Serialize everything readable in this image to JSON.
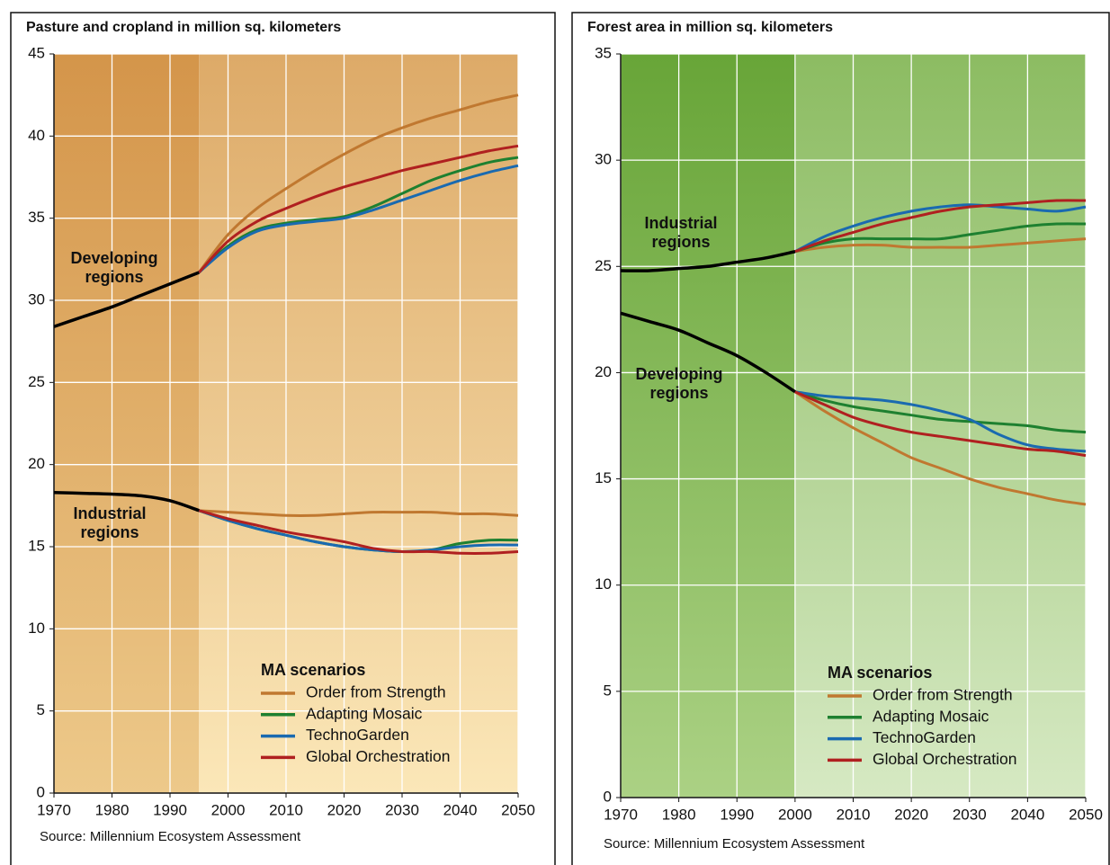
{
  "chart_data": [
    {
      "type": "line",
      "title": "Pasture and cropland in million sq. kilometers",
      "source": "Source: Millennium Ecosystem Assessment",
      "xlim": [
        1970,
        2050
      ],
      "xticks": [
        1970,
        1980,
        1990,
        2000,
        2010,
        2020,
        2030,
        2040,
        2050
      ],
      "ylim": [
        0,
        45
      ],
      "yticks": [
        0,
        5,
        10,
        15,
        20,
        25,
        30,
        35,
        40,
        45
      ],
      "grid": true,
      "legend_title": "MA scenarios",
      "history_color": "#000000",
      "scenarios": [
        {
          "name": "Order from Strength",
          "color": "#c07830"
        },
        {
          "name": "Adapting Mosaic",
          "color": "#1e8030"
        },
        {
          "name": "TechnoGarden",
          "color": "#1a6ab0"
        },
        {
          "name": "Global Orchestration",
          "color": "#b02020"
        }
      ],
      "regions": [
        {
          "label": [
            "Developing",
            "regions"
          ],
          "history": {
            "x": [
              1970,
              1975,
              1980,
              1985,
              1990,
              1995
            ],
            "values": [
              28.4,
              29.0,
              29.6,
              30.3,
              31.0,
              31.7
            ]
          },
          "scenario_x": [
            1995,
            2000,
            2005,
            2010,
            2015,
            2020,
            2025,
            2030,
            2035,
            2040,
            2045,
            2050
          ],
          "series": [
            {
              "values": [
                31.7,
                34.0,
                35.6,
                36.8,
                37.9,
                38.9,
                39.8,
                40.5,
                41.1,
                41.6,
                42.1,
                42.5
              ]
            },
            {
              "values": [
                31.7,
                33.3,
                34.3,
                34.7,
                34.9,
                35.1,
                35.7,
                36.5,
                37.3,
                37.9,
                38.4,
                38.7
              ]
            },
            {
              "values": [
                31.7,
                33.2,
                34.2,
                34.6,
                34.8,
                35.0,
                35.5,
                36.1,
                36.7,
                37.3,
                37.8,
                38.2
              ]
            },
            {
              "values": [
                31.7,
                33.6,
                34.8,
                35.6,
                36.3,
                36.9,
                37.4,
                37.9,
                38.3,
                38.7,
                39.1,
                39.4
              ]
            }
          ]
        },
        {
          "label": [
            "Industrial",
            "regions"
          ],
          "history": {
            "x": [
              1970,
              1975,
              1980,
              1985,
              1990,
              1995
            ],
            "values": [
              18.3,
              18.25,
              18.2,
              18.1,
              17.8,
              17.2
            ]
          },
          "scenario_x": [
            1995,
            2000,
            2005,
            2010,
            2015,
            2020,
            2025,
            2030,
            2035,
            2040,
            2045,
            2050
          ],
          "series": [
            {
              "values": [
                17.2,
                17.1,
                17.0,
                16.9,
                16.9,
                17.0,
                17.1,
                17.1,
                17.1,
                17.0,
                17.0,
                16.9
              ]
            },
            {
              "values": [
                17.2,
                16.6,
                16.1,
                15.7,
                15.3,
                15.0,
                14.8,
                14.7,
                14.8,
                15.2,
                15.4,
                15.4
              ]
            },
            {
              "values": [
                17.2,
                16.6,
                16.1,
                15.7,
                15.3,
                15.0,
                14.8,
                14.7,
                14.8,
                15.0,
                15.1,
                15.1
              ]
            },
            {
              "values": [
                17.2,
                16.7,
                16.3,
                15.9,
                15.6,
                15.3,
                14.9,
                14.7,
                14.7,
                14.6,
                14.6,
                14.7
              ]
            }
          ]
        }
      ]
    },
    {
      "type": "line",
      "title": "Forest area in million sq. kilometers",
      "source": "Source: Millennium Ecosystem Assessment",
      "xlim": [
        1970,
        2050
      ],
      "xticks": [
        1970,
        1980,
        1990,
        2000,
        2010,
        2020,
        2030,
        2040,
        2050
      ],
      "ylim": [
        0,
        35
      ],
      "yticks": [
        0,
        5,
        10,
        15,
        20,
        25,
        30,
        35
      ],
      "grid": true,
      "legend_title": "MA scenarios",
      "history_color": "#000000",
      "scenarios": [
        {
          "name": "Order from Strength",
          "color": "#c07830"
        },
        {
          "name": "Adapting Mosaic",
          "color": "#1e8030"
        },
        {
          "name": "TechnoGarden",
          "color": "#1a6ab0"
        },
        {
          "name": "Global Orchestration",
          "color": "#b02020"
        }
      ],
      "regions": [
        {
          "label": [
            "Industrial",
            "regions"
          ],
          "history": {
            "x": [
              1970,
              1975,
              1980,
              1985,
              1990,
              1995,
              2000
            ],
            "values": [
              24.8,
              24.8,
              24.9,
              25.0,
              25.2,
              25.4,
              25.7
            ]
          },
          "scenario_x": [
            2000,
            2005,
            2010,
            2015,
            2020,
            2025,
            2030,
            2035,
            2040,
            2045,
            2050
          ],
          "series": [
            {
              "values": [
                25.7,
                25.9,
                26.0,
                26.0,
                25.9,
                25.9,
                25.9,
                26.0,
                26.1,
                26.2,
                26.3
              ]
            },
            {
              "values": [
                25.7,
                26.1,
                26.3,
                26.3,
                26.3,
                26.3,
                26.5,
                26.7,
                26.9,
                27.0,
                27.0
              ]
            },
            {
              "values": [
                25.7,
                26.4,
                26.9,
                27.3,
                27.6,
                27.8,
                27.9,
                27.8,
                27.7,
                27.6,
                27.8
              ]
            },
            {
              "values": [
                25.7,
                26.2,
                26.6,
                27.0,
                27.3,
                27.6,
                27.8,
                27.9,
                28.0,
                28.1,
                28.1
              ]
            }
          ]
        },
        {
          "label": [
            "Developing",
            "regions"
          ],
          "history": {
            "x": [
              1970,
              1975,
              1980,
              1985,
              1990,
              1995,
              2000
            ],
            "values": [
              22.8,
              22.4,
              22.0,
              21.4,
              20.8,
              20.0,
              19.1
            ]
          },
          "scenario_x": [
            2000,
            2005,
            2010,
            2015,
            2020,
            2025,
            2030,
            2035,
            2040,
            2045,
            2050
          ],
          "series": [
            {
              "values": [
                19.1,
                18.2,
                17.4,
                16.7,
                16.0,
                15.5,
                15.0,
                14.6,
                14.3,
                14.0,
                13.8
              ]
            },
            {
              "values": [
                19.1,
                18.7,
                18.4,
                18.2,
                18.0,
                17.8,
                17.7,
                17.6,
                17.5,
                17.3,
                17.2
              ]
            },
            {
              "values": [
                19.1,
                18.9,
                18.8,
                18.7,
                18.5,
                18.2,
                17.8,
                17.1,
                16.6,
                16.4,
                16.3
              ]
            },
            {
              "values": [
                19.1,
                18.5,
                17.9,
                17.5,
                17.2,
                17.0,
                16.8,
                16.6,
                16.4,
                16.3,
                16.1
              ]
            }
          ]
        }
      ]
    }
  ]
}
